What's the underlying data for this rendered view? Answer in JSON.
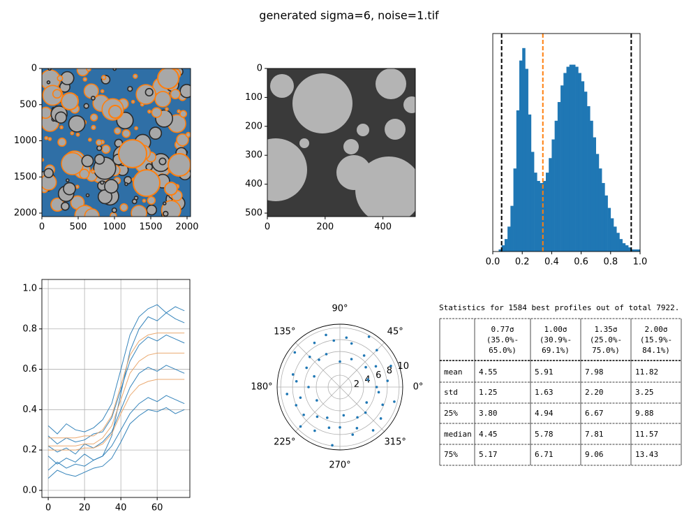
{
  "title": "generated sigma=6, noise=1.tif",
  "chart_data": [
    {
      "type": "image",
      "xlim": [
        0,
        2048
      ],
      "ylim": [
        2048,
        0
      ],
      "xticks": [
        0,
        500,
        1000,
        1500,
        2000
      ],
      "yticks": [
        0,
        500,
        1000,
        1500,
        2000
      ]
    },
    {
      "type": "image",
      "xlim": [
        0,
        512
      ],
      "ylim": [
        512,
        0
      ],
      "xticks": [
        0,
        200,
        400
      ],
      "yticks": [
        0,
        100,
        200,
        300,
        400,
        500
      ]
    },
    {
      "type": "histogram",
      "color": "#1f77b4",
      "xlim": [
        0,
        1
      ],
      "ylim": [
        0,
        105
      ],
      "xticks": [
        {
          "value": 0,
          "label": "0.0"
        },
        {
          "value": 0.2,
          "label": "0.2"
        },
        {
          "value": 0.4,
          "label": "0.4"
        },
        {
          "value": 0.6,
          "label": "0.6"
        },
        {
          "value": 0.8,
          "label": "0.8"
        },
        {
          "value": 1,
          "label": "1.0"
        }
      ],
      "bins": [
        0,
        0.02,
        0.04,
        0.06,
        0.08,
        0.1,
        0.12,
        0.14,
        0.16,
        0.18,
        0.2,
        0.22,
        0.24,
        0.26,
        0.28,
        0.3,
        0.32,
        0.34,
        0.36,
        0.38,
        0.4,
        0.42,
        0.44,
        0.46,
        0.48,
        0.5,
        0.52,
        0.54,
        0.56,
        0.58,
        0.6,
        0.62,
        0.64,
        0.66,
        0.68,
        0.7,
        0.72,
        0.74,
        0.76,
        0.78,
        0.8,
        0.82,
        0.84,
        0.86,
        0.88,
        0.9,
        0.92,
        0.94,
        0.96,
        0.98,
        1
      ],
      "counts": [
        0,
        0,
        1,
        3,
        6,
        12,
        22,
        40,
        68,
        92,
        98,
        88,
        66,
        48,
        38,
        34,
        33,
        34,
        38,
        45,
        54,
        63,
        72,
        80,
        86,
        89,
        90,
        90,
        89,
        86,
        82,
        77,
        70,
        63,
        55,
        47,
        40,
        33,
        27,
        21,
        16,
        12,
        9,
        6,
        4,
        3,
        2,
        1,
        1,
        1
      ],
      "vlines": [
        {
          "x": 0.06,
          "color": "#000000"
        },
        {
          "x": 0.94,
          "color": "#000000"
        },
        {
          "x": 0.34,
          "color": "#ff7f0e"
        }
      ]
    },
    {
      "type": "line",
      "grid": true,
      "xlim": [
        -3.5,
        78
      ],
      "ylim": [
        -0.035,
        1.045
      ],
      "xticks": [
        0,
        20,
        40,
        60
      ],
      "yticks": [
        {
          "value": 0,
          "label": "0.0"
        },
        {
          "value": 0.2,
          "label": "0.2"
        },
        {
          "value": 0.4,
          "label": "0.4"
        },
        {
          "value": 0.6,
          "label": "0.6"
        },
        {
          "value": 0.8,
          "label": "0.8"
        },
        {
          "value": 1,
          "label": "1.0"
        }
      ],
      "x": [
        0,
        5,
        10,
        15,
        20,
        25,
        30,
        35,
        40,
        45,
        50,
        55,
        60,
        65,
        70,
        75
      ],
      "series": [
        {
          "color": "#1f77b4",
          "values": [
            0.17,
            0.13,
            0.16,
            0.14,
            0.18,
            0.15,
            0.17,
            0.22,
            0.3,
            0.38,
            0.43,
            0.46,
            0.44,
            0.47,
            0.45,
            0.43
          ]
        },
        {
          "color": "#1f77b4",
          "values": [
            0.22,
            0.19,
            0.21,
            0.18,
            0.23,
            0.21,
            0.24,
            0.29,
            0.4,
            0.51,
            0.58,
            0.61,
            0.59,
            0.62,
            0.6,
            0.58
          ]
        },
        {
          "color": "#1f77b4",
          "values": [
            0.27,
            0.23,
            0.26,
            0.24,
            0.25,
            0.28,
            0.29,
            0.36,
            0.5,
            0.64,
            0.72,
            0.76,
            0.74,
            0.77,
            0.75,
            0.73
          ]
        },
        {
          "color": "#1f77b4",
          "values": [
            0.1,
            0.14,
            0.11,
            0.13,
            0.12,
            0.15,
            0.17,
            0.27,
            0.48,
            0.69,
            0.8,
            0.86,
            0.84,
            0.88,
            0.85,
            0.83
          ]
        },
        {
          "color": "#1f77b4",
          "values": [
            0.32,
            0.28,
            0.33,
            0.3,
            0.29,
            0.31,
            0.35,
            0.43,
            0.6,
            0.77,
            0.86,
            0.9,
            0.92,
            0.88,
            0.91,
            0.89
          ]
        },
        {
          "color": "#1f77b4",
          "values": [
            0.06,
            0.1,
            0.08,
            0.07,
            0.09,
            0.11,
            0.12,
            0.16,
            0.24,
            0.33,
            0.37,
            0.4,
            0.39,
            0.41,
            0.38,
            0.4
          ]
        },
        {
          "color": "#e8a060",
          "values": [
            0.2,
            0.2,
            0.2,
            0.2,
            0.21,
            0.21,
            0.23,
            0.28,
            0.38,
            0.47,
            0.52,
            0.54,
            0.55,
            0.55,
            0.55,
            0.55
          ]
        },
        {
          "color": "#e8a060",
          "values": [
            0.22,
            0.22,
            0.22,
            0.22,
            0.23,
            0.23,
            0.26,
            0.32,
            0.45,
            0.58,
            0.64,
            0.67,
            0.68,
            0.68,
            0.68,
            0.68
          ]
        },
        {
          "color": "#e8a060",
          "values": [
            0.26,
            0.26,
            0.26,
            0.26,
            0.27,
            0.27,
            0.3,
            0.37,
            0.52,
            0.67,
            0.74,
            0.77,
            0.78,
            0.78,
            0.78,
            0.78
          ]
        }
      ]
    },
    {
      "type": "polar",
      "color": "#1f77b4",
      "rlim": [
        0,
        10.6
      ],
      "rticks": [
        2,
        4,
        6,
        8,
        10
      ],
      "thetaticks": [
        {
          "value": 0,
          "label": "0°"
        },
        {
          "value": 45,
          "label": "45°"
        },
        {
          "value": 90,
          "label": "90°"
        },
        {
          "value": 135,
          "label": "135°"
        },
        {
          "value": 180,
          "label": "180°"
        },
        {
          "value": 225,
          "label": "225°"
        },
        {
          "value": 270,
          "label": "270°"
        },
        {
          "value": 315,
          "label": "315°"
        }
      ],
      "theta": [
        0,
        7.5,
        15,
        22.5,
        30,
        37.5,
        45,
        52.5,
        60,
        67.5,
        75,
        82.5,
        90,
        97.5,
        105,
        112.5,
        120,
        127.5,
        135,
        142.5,
        150,
        157.5,
        165,
        172.5,
        180,
        187.5,
        195,
        202.5,
        210,
        217.5,
        225,
        232.5,
        240,
        247.5,
        255,
        262.5,
        270,
        277.5,
        285,
        292.5,
        300,
        307.5,
        315,
        322.5,
        330,
        337.5,
        345,
        352.5
      ],
      "r": [
        6.2,
        8.1,
        4.9,
        9.3,
        7.0,
        5.5,
        8.8,
        6.7,
        9.8,
        5.1,
        7.6,
        8.4,
        4.3,
        7.9,
        9.1,
        6.0,
        8.6,
        5.8,
        7.2,
        9.6,
        6.5,
        4.7,
        8.2,
        7.4,
        5.3,
        9.0,
        6.9,
        8.0,
        4.5,
        7.7,
        9.4,
        6.3,
        8.5,
        5.6,
        7.1,
        9.9,
        6.8,
        4.8,
        8.3,
        7.5,
        5.9,
        9.2,
        6.1,
        8.7,
        5.2,
        7.8,
        9.5,
        6.6
      ]
    }
  ],
  "stats_table": {
    "caption": "Statistics for 1584 best profiles out of total 7922.",
    "header": [
      {
        "sigma": "0.77σ",
        "range": [
          "(35.0%-",
          "65.0%)"
        ]
      },
      {
        "sigma": "1.00σ",
        "range": [
          "(30.9%-",
          "69.1%)"
        ]
      },
      {
        "sigma": "1.35σ",
        "range": [
          "(25.0%-",
          "75.0%)"
        ]
      },
      {
        "sigma": "2.00σ",
        "range": [
          "(15.9%-",
          "84.1%)"
        ]
      }
    ],
    "rows": [
      [
        "mean",
        "4.55",
        "5.91",
        "7.98",
        "11.82"
      ],
      [
        "std",
        "1.25",
        "1.63",
        "2.20",
        "3.25"
      ],
      [
        "25%",
        "3.80",
        "4.94",
        "6.67",
        "9.88"
      ],
      [
        "median",
        "4.45",
        "5.78",
        "7.81",
        "11.57"
      ],
      [
        "75%",
        "5.17",
        "6.71",
        "9.06",
        "13.43"
      ]
    ]
  }
}
